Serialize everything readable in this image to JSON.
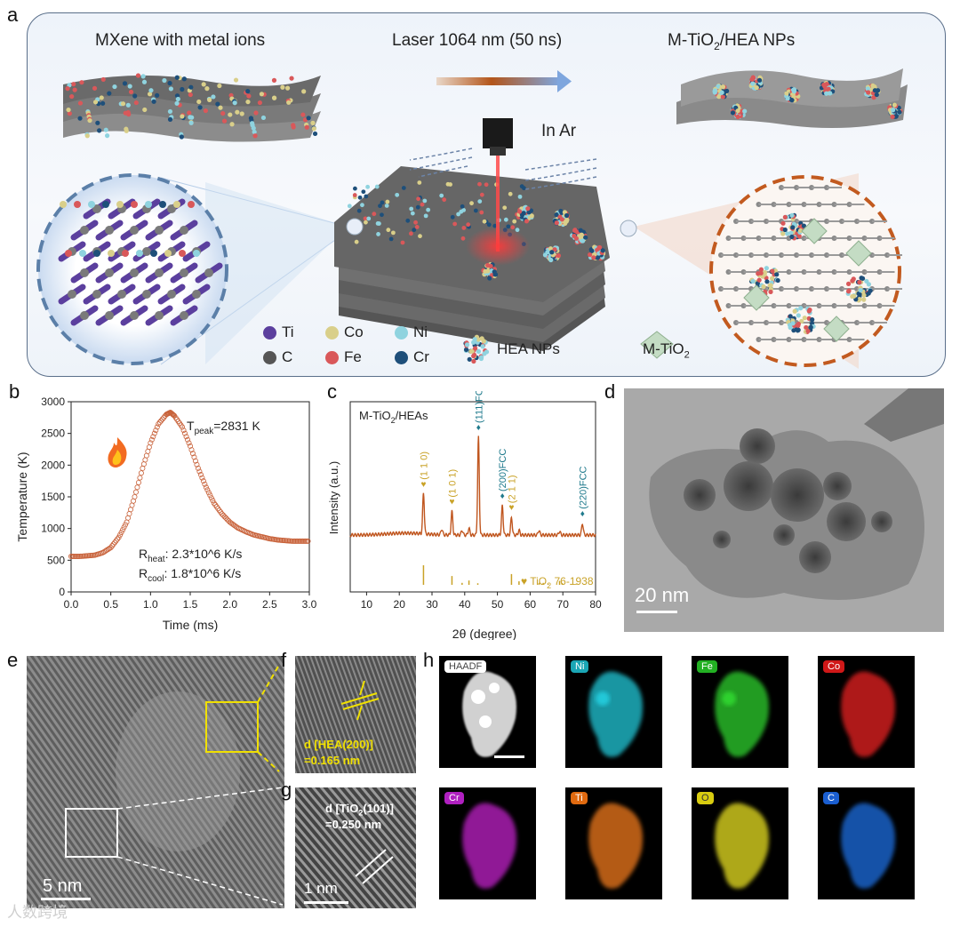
{
  "panel_labels": {
    "a": "a",
    "b": "b",
    "c": "c",
    "d": "d",
    "e": "e",
    "f": "f",
    "g": "g",
    "h": "h"
  },
  "panel_a": {
    "title_left": "MXene with metal ions",
    "title_center": "Laser 1064 nm (50 ns)",
    "title_right_prefix": "M-TiO",
    "title_right_sub": "2",
    "title_right_suffix": "/HEA NPs",
    "in_ar": "In Ar",
    "legend": [
      {
        "label": "Ti",
        "color": "#5b3f9e"
      },
      {
        "label": "C",
        "color": "#555555"
      },
      {
        "label": "Co",
        "color": "#d9cf8a"
      },
      {
        "label": "Fe",
        "color": "#d9585a"
      },
      {
        "label": "Ni",
        "color": "#8fd3df"
      },
      {
        "label": "Cr",
        "color": "#1e4f7a"
      }
    ],
    "hea_label": "HEA NPs",
    "mtio2_prefix": "M-TiO",
    "mtio2_sub": "2"
  },
  "chart_b": {
    "type": "scatter",
    "xlabel": "Time (ms)",
    "ylabel": "Temperature (K)",
    "xlim": [
      0.0,
      3.0
    ],
    "ylim": [
      0,
      3000
    ],
    "xticks": [
      "0.0",
      "0.5",
      "1.0",
      "1.5",
      "2.0",
      "2.5",
      "3.0"
    ],
    "yticks": [
      "0",
      "500",
      "1000",
      "1500",
      "2000",
      "2500",
      "3000"
    ],
    "peak_prefix": "T",
    "peak_sub": "peak",
    "peak_suffix": "=2831 K",
    "rheat_prefix": "R",
    "rheat_sub": "heat",
    "rheat_suffix": ": 2.3*10^6 K/s",
    "rcool_prefix": "R",
    "rcool_sub": "cool",
    "rcool_suffix": ": 1.8*10^6 K/s",
    "marker_color": "#c8623a",
    "x": [
      0.0,
      0.1,
      0.2,
      0.3,
      0.4,
      0.5,
      0.6,
      0.7,
      0.8,
      0.9,
      1.0,
      1.1,
      1.2,
      1.25,
      1.3,
      1.4,
      1.5,
      1.6,
      1.7,
      1.8,
      1.9,
      2.0,
      2.1,
      2.2,
      2.3,
      2.4,
      2.5,
      2.6,
      2.7,
      2.8,
      2.9,
      3.0
    ],
    "y": [
      560,
      560,
      570,
      580,
      620,
      700,
      860,
      1100,
      1500,
      1950,
      2350,
      2650,
      2800,
      2831,
      2780,
      2600,
      2300,
      1950,
      1650,
      1400,
      1230,
      1100,
      1010,
      950,
      900,
      870,
      840,
      820,
      810,
      800,
      800,
      800
    ]
  },
  "chart_c": {
    "type": "line",
    "title": "M-TiO",
    "title_sub": "2",
    "title_suffix": "/HEAs",
    "xlabel": "2θ (degree)",
    "ylabel": "Intensity (a.u.)",
    "xlim": [
      5,
      80
    ],
    "xticks": [
      "10",
      "20",
      "30",
      "40",
      "50",
      "60",
      "70",
      "80"
    ],
    "line_color": "#c0561f",
    "ref_color": "#c9a227",
    "fcc_color": "#1f7a8c",
    "peaks": [
      {
        "x": 27.4,
        "h": 0.42
      },
      {
        "x": 33.0,
        "h": 0.06
      },
      {
        "x": 36.1,
        "h": 0.24
      },
      {
        "x": 39.2,
        "h": 0.05
      },
      {
        "x": 41.3,
        "h": 0.07
      },
      {
        "x": 44.2,
        "h": 1.0
      },
      {
        "x": 51.5,
        "h": 0.3
      },
      {
        "x": 54.3,
        "h": 0.18
      },
      {
        "x": 56.6,
        "h": 0.05
      },
      {
        "x": 62.7,
        "h": 0.05
      },
      {
        "x": 69.0,
        "h": 0.04
      },
      {
        "x": 76.0,
        "h": 0.12
      }
    ],
    "ref_lines": [
      {
        "x": 27.4,
        "h": 1.0
      },
      {
        "x": 36.1,
        "h": 0.45
      },
      {
        "x": 39.2,
        "h": 0.1
      },
      {
        "x": 41.3,
        "h": 0.22
      },
      {
        "x": 44.0,
        "h": 0.08
      },
      {
        "x": 54.3,
        "h": 0.55
      },
      {
        "x": 56.6,
        "h": 0.18
      },
      {
        "x": 62.7,
        "h": 0.1
      },
      {
        "x": 64.0,
        "h": 0.1
      },
      {
        "x": 65.5,
        "h": 0.05
      },
      {
        "x": 69.0,
        "h": 0.2
      },
      {
        "x": 69.8,
        "h": 0.1
      },
      {
        "x": 72.4,
        "h": 0.05
      },
      {
        "x": 74.0,
        "h": 0.05
      },
      {
        "x": 76.5,
        "h": 0.04
      }
    ],
    "annotations": [
      {
        "text": "(1 1 0)",
        "x": 27.4,
        "kind": "rutile"
      },
      {
        "text": "(1 0 1)",
        "x": 36.1,
        "kind": "rutile"
      },
      {
        "text": "(111)FCC",
        "x": 44.2,
        "kind": "fcc"
      },
      {
        "text": "(200)FCC",
        "x": 51.5,
        "kind": "fcc"
      },
      {
        "text": "(2 1 1)",
        "x": 54.3,
        "kind": "rutile"
      },
      {
        "text": "(220)FCC",
        "x": 76.0,
        "kind": "fcc"
      }
    ],
    "ref_label_prefix": "TiO",
    "ref_label_sub": "2",
    "ref_label_suffix": " 76-1938"
  },
  "panel_d": {
    "scale": "20 nm"
  },
  "panel_e": {
    "scale": "5 nm"
  },
  "panel_f": {
    "line1": "d [HEA(200)]",
    "line2": "=0.165 nm"
  },
  "panel_g": {
    "line1_prefix": "d [TiO",
    "line1_sub": "2",
    "line1_suffix": "(101)]",
    "line2": "=0.250 nm",
    "scale": "1 nm"
  },
  "panel_h": {
    "maps": [
      {
        "label": "HAADF",
        "color": "#e8e8e8",
        "label_bg": "#ffffff",
        "label_fg": "#444444"
      },
      {
        "label": "Ni",
        "color": "#22c8d8",
        "label_bg": "#1aa6b5",
        "label_fg": "#ffffff"
      },
      {
        "label": "Fe",
        "color": "#2fd12f",
        "label_bg": "#22b022",
        "label_fg": "#ffffff"
      },
      {
        "label": "Co",
        "color": "#e82020",
        "label_bg": "#d01818",
        "label_fg": "#ffffff"
      },
      {
        "label": "Cr",
        "color": "#c020c8",
        "label_bg": "#b020c0",
        "label_fg": "#ffffff"
      },
      {
        "label": "Ti",
        "color": "#f07a1a",
        "label_bg": "#e06a10",
        "label_fg": "#ffffff"
      },
      {
        "label": "O",
        "color": "#e8e020",
        "label_bg": "#d8cc10",
        "label_fg": "#333333"
      },
      {
        "label": "C",
        "color": "#1e6ee0",
        "label_bg": "#1a5ed0",
        "label_fg": "#ffffff"
      }
    ]
  },
  "watermark": "人数跨境",
  "colors": {
    "blob": "#6e6e6e"
  }
}
